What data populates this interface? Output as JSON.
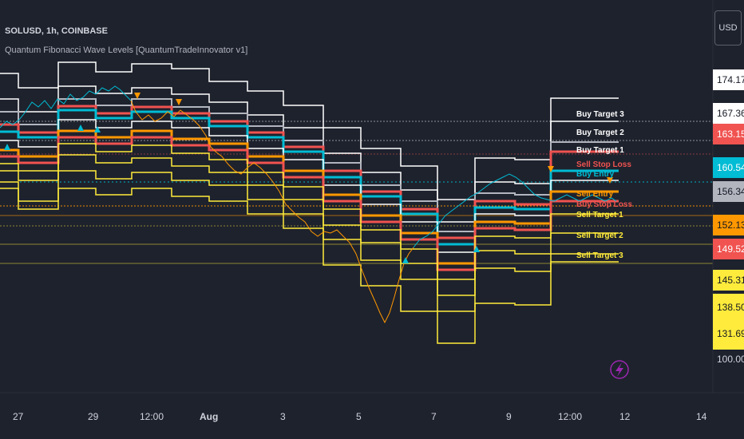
{
  "header": {
    "symbol": "SOLUSD, 1h, COINBASE",
    "indicator": "Quantum Fibonacci Wave Levels [QuantumTradeInnovator v1]"
  },
  "currency": "USD",
  "time_axis": [
    "27",
    "29",
    "12:00",
    "Aug",
    "3",
    "5",
    "7",
    "9",
    "12:00",
    "12",
    "14"
  ],
  "price_tags": [
    {
      "text": "174.17",
      "color": "#ffffff",
      "text_color": "#131722"
    },
    {
      "text": "167.36",
      "color": "#ffffff",
      "text_color": "#131722"
    },
    {
      "text": "163.15",
      "color": "#f05350",
      "text_color": "#ffffff"
    },
    {
      "text": "160.54",
      "color": "#00bcd4",
      "text_color": "#ffffff"
    },
    {
      "text": "156.34",
      "color": "#b2b5be",
      "text_color": "#131722"
    },
    {
      "text": "152.13",
      "color": "#ff9800",
      "text_color": "#131722"
    },
    {
      "text": "149.52",
      "color": "#f05350",
      "text_color": "#ffffff"
    },
    {
      "text": "145.31",
      "color": "#ffeb3b",
      "text_color": "#131722"
    },
    {
      "text": "138.50",
      "color": "#ffeb3b",
      "text_color": "#131722"
    },
    {
      "text": "131.69",
      "color": "#ffeb3b",
      "text_color": "#131722"
    }
  ],
  "faded_labels": [
    "100.00"
  ],
  "target_labels": [
    {
      "text": "Buy Target 3",
      "color": "#ffffff"
    },
    {
      "text": "Buy Target 2",
      "color": "#ffffff"
    },
    {
      "text": "Buy Target 1",
      "color": "#ffffff"
    },
    {
      "text": "Sell Stop Loss",
      "color": "#f05350"
    },
    {
      "text": "Buy Entry",
      "color": "#00bcd4"
    },
    {
      "text": "Sell Entry",
      "color": "#ff9800"
    },
    {
      "text": "Buy Stop Loss",
      "color": "#f05350"
    },
    {
      "text": "Sell Target 1",
      "color": "#ffeb3b"
    },
    {
      "text": "Sell Target 2",
      "color": "#ffeb3b"
    },
    {
      "text": "Sell Target 3",
      "color": "#ffeb3b"
    }
  ],
  "colors": {
    "background": "#1e222d",
    "white_level": "#ffffff",
    "red_level": "#f05350",
    "cyan_level": "#00bcd4",
    "orange_level": "#ff9800",
    "yellow_level": "#ffeb3b",
    "gray_level": "#b2b5be"
  },
  "icons": {
    "bolt": "lightning-bolt-icon"
  }
}
